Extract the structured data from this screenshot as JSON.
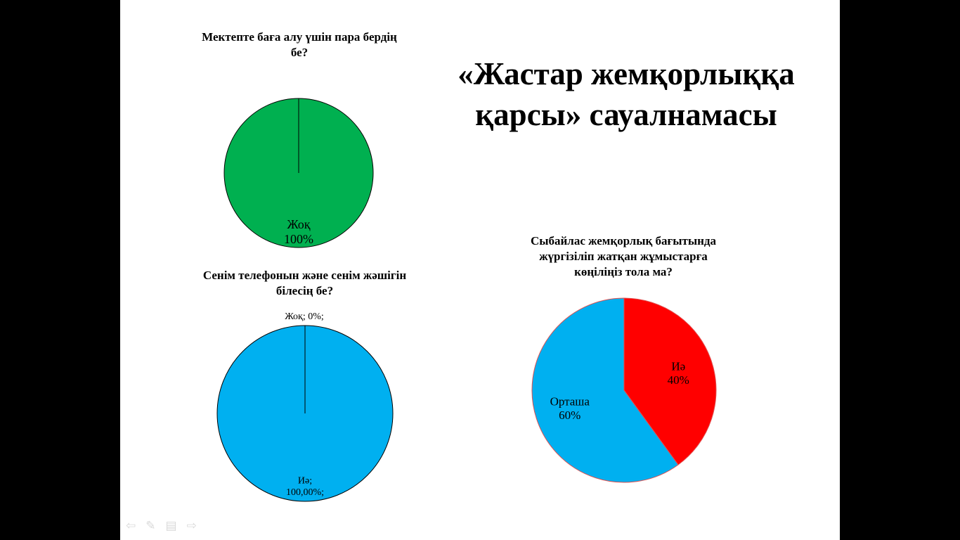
{
  "title": "«Жастар жемқорлыққа қарсы» сауалнамасы",
  "chart_data": [
    {
      "type": "pie",
      "title": "Мектепте баға алу үшін пара бердің бе?",
      "slices": [
        {
          "label": "Жоқ",
          "value": 100,
          "value_text": "100%",
          "color": "#00B050"
        }
      ]
    },
    {
      "type": "pie",
      "title": "Сенім телефонын және сенім жәшігін білесің бе?",
      "slices": [
        {
          "label": "Иә;",
          "value": 100,
          "value_text": "100,00%;",
          "color": "#00B0F0"
        },
        {
          "label": "Жоқ; 0%;",
          "value": 0,
          "value_text": "",
          "color": "#C00000"
        }
      ]
    },
    {
      "type": "pie",
      "title": "Сыбайлас жемқорлық бағытында жүргізіліп жатқан жұмыстарға көңіліңіз тола ма?",
      "slices": [
        {
          "label": "Иә",
          "value": 40,
          "value_text": "40%",
          "color": "#FF0000"
        },
        {
          "label": "Орташа",
          "value": 60,
          "value_text": "60%",
          "color": "#00B0F0"
        }
      ]
    }
  ],
  "nav": {
    "back_icon": "arrow-left-icon",
    "pen_icon": "pen-icon",
    "menu_icon": "menu-icon",
    "forward_icon": "arrow-right-icon"
  }
}
